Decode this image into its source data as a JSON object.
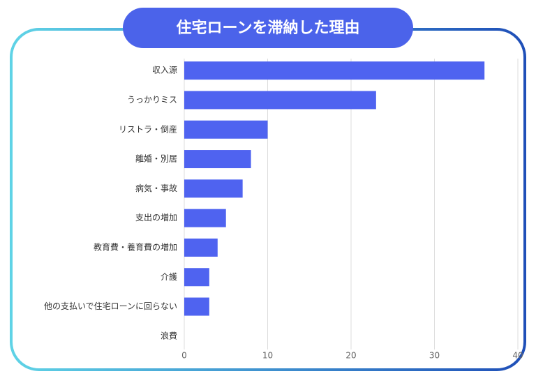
{
  "chart_data": {
    "type": "bar",
    "orientation": "horizontal",
    "title": "住宅ローンを滞納した理由",
    "categories": [
      "収入源",
      "うっかりミス",
      "リストラ・倒産",
      "離婚・別居",
      "病気・事故",
      "支出の増加",
      "教育費・養育費の増加",
      "介護",
      "他の支払いで住宅ローンに回らない",
      "浪費"
    ],
    "values": [
      36,
      23,
      10,
      8,
      7,
      5,
      4,
      3,
      3,
      0
    ],
    "color": "#4f63f0",
    "xlim": [
      0,
      40
    ],
    "xticks": [
      0,
      10,
      20,
      30,
      40
    ],
    "grid": true
  }
}
